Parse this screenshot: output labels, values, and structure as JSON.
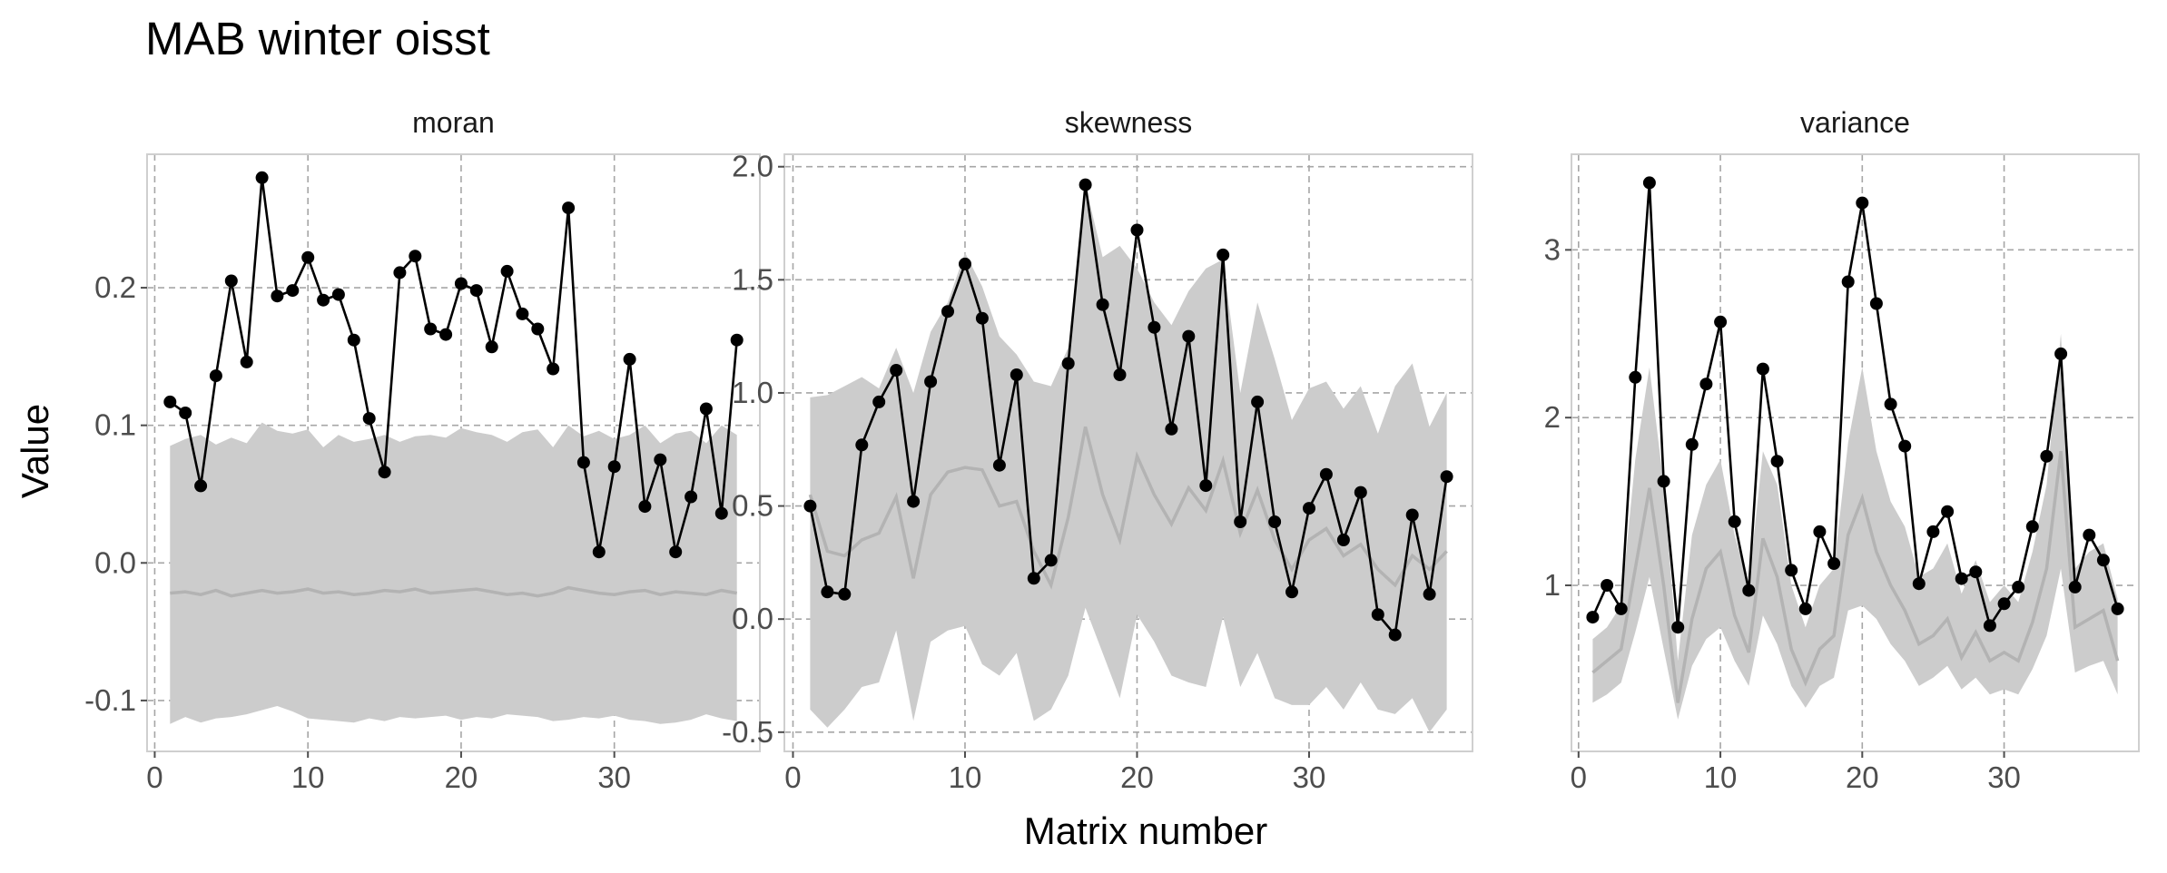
{
  "chart_data": {
    "type": "line",
    "title": "MAB winter oisst",
    "xlabel": "Matrix number",
    "ylabel": "Value",
    "grid": true,
    "panels": [
      {
        "name": "moran",
        "xlim": [
          -0.5,
          39.5
        ],
        "ylim": [
          -0.137,
          0.297
        ],
        "xticks": [
          0,
          10,
          20,
          30
        ],
        "yticks": [
          -0.1,
          0.0,
          0.1,
          0.2
        ],
        "ytick_labels": [
          "-0.1",
          "0.0",
          "0.1",
          "0.2"
        ],
        "x": [
          1,
          2,
          3,
          4,
          5,
          6,
          7,
          8,
          9,
          10,
          11,
          12,
          13,
          14,
          15,
          16,
          17,
          18,
          19,
          20,
          21,
          22,
          23,
          24,
          25,
          26,
          27,
          28,
          29,
          30,
          31,
          32,
          33,
          34,
          35,
          36,
          37,
          38
        ],
        "observed": [
          0.117,
          0.109,
          0.056,
          0.136,
          0.205,
          0.146,
          0.28,
          0.194,
          0.198,
          0.222,
          0.191,
          0.195,
          0.162,
          0.105,
          0.066,
          0.211,
          0.223,
          0.17,
          0.166,
          0.203,
          0.198,
          0.157,
          0.212,
          0.181,
          0.17,
          0.141,
          0.258,
          0.073,
          0.008,
          0.07,
          0.148,
          0.041,
          0.075,
          0.008,
          0.048,
          0.112,
          0.036,
          0.162
        ],
        "median": [
          -0.022,
          -0.021,
          -0.023,
          -0.02,
          -0.024,
          -0.022,
          -0.02,
          -0.022,
          -0.021,
          -0.019,
          -0.022,
          -0.021,
          -0.023,
          -0.022,
          -0.02,
          -0.021,
          -0.019,
          -0.022,
          -0.021,
          -0.02,
          -0.019,
          -0.021,
          -0.023,
          -0.022,
          -0.024,
          -0.022,
          -0.018,
          -0.02,
          -0.022,
          -0.023,
          -0.021,
          -0.02,
          -0.023,
          -0.021,
          -0.022,
          -0.023,
          -0.02,
          -0.022
        ],
        "upper": [
          0.085,
          0.09,
          0.093,
          0.086,
          0.091,
          0.087,
          0.102,
          0.096,
          0.094,
          0.097,
          0.084,
          0.093,
          0.088,
          0.09,
          0.093,
          0.088,
          0.092,
          0.093,
          0.091,
          0.098,
          0.095,
          0.093,
          0.088,
          0.095,
          0.097,
          0.084,
          0.1,
          0.092,
          0.096,
          0.09,
          0.093,
          0.1,
          0.087,
          0.094,
          0.096,
          0.087,
          0.1,
          0.093
        ],
        "lower": [
          -0.117,
          -0.112,
          -0.116,
          -0.113,
          -0.112,
          -0.11,
          -0.107,
          -0.104,
          -0.108,
          -0.113,
          -0.114,
          -0.115,
          -0.116,
          -0.113,
          -0.115,
          -0.112,
          -0.113,
          -0.112,
          -0.111,
          -0.114,
          -0.112,
          -0.113,
          -0.11,
          -0.111,
          -0.112,
          -0.115,
          -0.114,
          -0.112,
          -0.113,
          -0.111,
          -0.114,
          -0.115,
          -0.117,
          -0.116,
          -0.114,
          -0.11,
          -0.113,
          -0.115
        ]
      },
      {
        "name": "skewness",
        "xlim": [
          -0.5,
          39.5
        ],
        "ylim": [
          -0.585,
          2.055
        ],
        "xticks": [
          0,
          10,
          20,
          30
        ],
        "yticks": [
          -0.5,
          0.0,
          0.5,
          1.0,
          1.5,
          2.0
        ],
        "ytick_labels": [
          "-0.5",
          "0.0",
          "0.5",
          "1.0",
          "1.5",
          "2.0"
        ],
        "x": [
          1,
          2,
          3,
          4,
          5,
          6,
          7,
          8,
          9,
          10,
          11,
          12,
          13,
          14,
          15,
          16,
          17,
          18,
          19,
          20,
          21,
          22,
          23,
          24,
          25,
          26,
          27,
          28,
          29,
          30,
          31,
          32,
          33,
          34,
          35,
          36,
          37,
          38
        ],
        "observed": [
          0.5,
          0.12,
          0.11,
          0.77,
          0.96,
          1.1,
          0.52,
          1.05,
          1.36,
          1.57,
          1.33,
          0.68,
          1.08,
          0.18,
          0.26,
          1.13,
          1.92,
          1.39,
          1.08,
          1.72,
          1.29,
          0.84,
          1.25,
          0.59,
          1.61,
          0.43,
          0.96,
          0.43,
          0.12,
          0.49,
          0.64,
          0.35,
          0.56,
          0.02,
          -0.07,
          0.46,
          0.11,
          0.63
        ],
        "median": [
          0.55,
          0.3,
          0.28,
          0.35,
          0.38,
          0.54,
          0.18,
          0.55,
          0.65,
          0.67,
          0.66,
          0.5,
          0.52,
          0.3,
          0.15,
          0.45,
          0.85,
          0.55,
          0.35,
          0.72,
          0.55,
          0.42,
          0.58,
          0.48,
          0.7,
          0.38,
          0.57,
          0.35,
          0.22,
          0.35,
          0.4,
          0.28,
          0.33,
          0.22,
          0.15,
          0.28,
          0.22,
          0.3
        ],
        "upper": [
          0.98,
          0.99,
          1.03,
          1.07,
          1.02,
          1.2,
          1.0,
          1.27,
          1.4,
          1.62,
          1.47,
          1.25,
          1.17,
          1.05,
          1.03,
          1.2,
          1.92,
          1.6,
          1.65,
          1.55,
          1.4,
          1.3,
          1.45,
          1.55,
          1.59,
          1.0,
          1.4,
          1.15,
          0.88,
          1.02,
          1.05,
          0.93,
          1.03,
          0.82,
          1.03,
          1.13,
          0.85,
          1.0
        ],
        "lower": [
          -0.4,
          -0.48,
          -0.4,
          -0.3,
          -0.28,
          -0.05,
          -0.45,
          -0.1,
          -0.05,
          -0.03,
          -0.2,
          -0.25,
          -0.15,
          -0.45,
          -0.4,
          -0.25,
          0.05,
          -0.15,
          -0.35,
          0.02,
          -0.1,
          -0.25,
          -0.28,
          -0.3,
          0.01,
          -0.3,
          -0.15,
          -0.35,
          -0.38,
          -0.38,
          -0.3,
          -0.4,
          -0.28,
          -0.4,
          -0.42,
          -0.35,
          -0.5,
          -0.4
        ]
      },
      {
        "name": "variance",
        "xlim": [
          -0.5,
          39.5
        ],
        "ylim": [
          0.01,
          3.57
        ],
        "xticks": [
          0,
          10,
          20,
          30
        ],
        "yticks": [
          1,
          2,
          3
        ],
        "ytick_labels": [
          "1",
          "2",
          "3"
        ],
        "x": [
          1,
          2,
          3,
          4,
          5,
          6,
          7,
          8,
          9,
          10,
          11,
          12,
          13,
          14,
          15,
          16,
          17,
          18,
          19,
          20,
          21,
          22,
          23,
          24,
          25,
          26,
          27,
          28,
          29,
          30,
          31,
          32,
          33,
          34,
          35,
          36,
          37,
          38
        ],
        "observed": [
          0.81,
          1.0,
          0.86,
          2.24,
          3.4,
          1.62,
          0.75,
          1.84,
          2.2,
          2.57,
          1.38,
          0.97,
          2.29,
          1.74,
          1.09,
          0.86,
          1.32,
          1.13,
          2.81,
          3.28,
          2.68,
          2.08,
          1.83,
          1.01,
          1.32,
          1.44,
          1.04,
          1.08,
          0.76,
          0.89,
          0.99,
          1.35,
          1.77,
          2.38,
          0.99,
          1.3,
          1.15,
          0.86
        ],
        "median": [
          0.48,
          0.55,
          0.62,
          1.1,
          1.58,
          1.0,
          0.3,
          0.8,
          1.1,
          1.2,
          0.82,
          0.6,
          1.28,
          1.05,
          0.62,
          0.42,
          0.62,
          0.7,
          1.3,
          1.52,
          1.2,
          1.0,
          0.85,
          0.65,
          0.7,
          0.8,
          0.57,
          0.72,
          0.55,
          0.6,
          0.55,
          0.78,
          1.1,
          1.8,
          0.75,
          0.8,
          0.85,
          0.55
        ],
        "upper": [
          0.68,
          0.75,
          0.88,
          1.75,
          2.3,
          1.6,
          0.55,
          1.3,
          1.6,
          1.75,
          1.3,
          1.0,
          1.8,
          1.6,
          1.0,
          0.75,
          1.0,
          1.1,
          1.85,
          2.3,
          1.8,
          1.5,
          1.35,
          1.05,
          1.1,
          1.25,
          0.95,
          1.15,
          0.9,
          1.0,
          0.9,
          1.2,
          1.6,
          2.5,
          1.1,
          1.2,
          1.25,
          0.92
        ],
        "lower": [
          0.3,
          0.35,
          0.42,
          0.72,
          1.05,
          0.62,
          0.2,
          0.52,
          0.68,
          0.75,
          0.55,
          0.4,
          0.82,
          0.65,
          0.4,
          0.27,
          0.4,
          0.45,
          0.85,
          0.88,
          0.8,
          0.65,
          0.55,
          0.4,
          0.45,
          0.52,
          0.38,
          0.45,
          0.35,
          0.38,
          0.35,
          0.5,
          0.7,
          1.1,
          0.48,
          0.52,
          0.55,
          0.35
        ]
      }
    ]
  }
}
